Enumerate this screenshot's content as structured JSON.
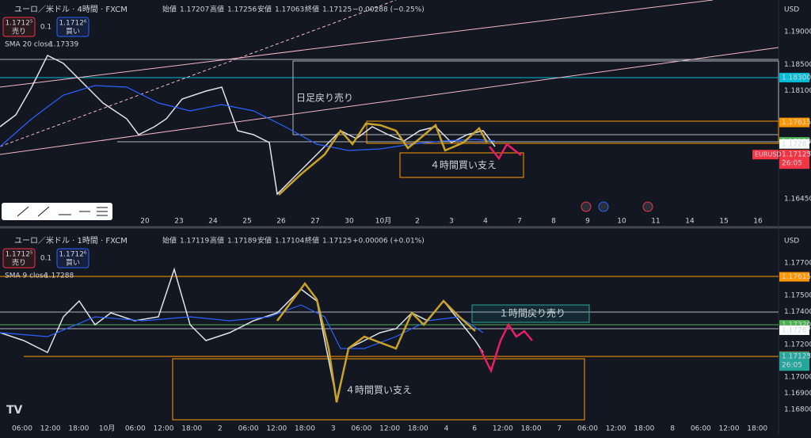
{
  "top_panel": {
    "symbol": "ユーロ／米ドル · 4時間 · FXCM",
    "ohlc": [
      {
        "label": "始値",
        "value": "1.17207"
      },
      {
        "label": "高値",
        "value": "1.17256"
      },
      {
        "label": "安値",
        "value": "1.17063"
      },
      {
        "label": "終値",
        "value": "1.17125"
      }
    ],
    "change": "−0.00288 (−0.25%)",
    "sell": {
      "price": "1.1712⁵",
      "label": "売り"
    },
    "spread": "0.1",
    "buy": {
      "price": "1.1712⁶",
      "label": "買い"
    },
    "indicator": {
      "name": "SMA 20 close",
      "value": "1.17339"
    },
    "currency": "USD",
    "price_ticks": [
      "1.19000",
      "1.18500",
      "1.18100",
      "1.16450"
    ],
    "price_tags": [
      {
        "text": "1.18300",
        "color": "#00bcd4"
      },
      {
        "text": "1.17615",
        "color": "#ff9800"
      },
      {
        "text": "1.17320",
        "color": "#4caf50"
      },
      {
        "text": "1.17287",
        "color": "#ffffff"
      },
      {
        "text": "1.17127",
        "color": "#ff9800"
      }
    ],
    "symbol_tag": "EURUSD",
    "last_price": "1.17125",
    "countdown": "26:05",
    "time_labels": [
      "20",
      "23",
      "24",
      "25",
      "26",
      "27",
      "30",
      "10月",
      "2",
      "3",
      "4",
      "7",
      "8",
      "9",
      "10",
      "11",
      "14",
      "15",
      "16"
    ],
    "annotations": [
      "日足戻り売り",
      "４時間買い支え"
    ]
  },
  "bottom_panel": {
    "symbol": "ユーロ／米ドル · 1時間 · FXCM",
    "ohlc": [
      {
        "label": "始値",
        "value": "1.17119"
      },
      {
        "label": "高値",
        "value": "1.17189"
      },
      {
        "label": "安値",
        "value": "1.17104"
      },
      {
        "label": "終値",
        "value": "1.17125"
      }
    ],
    "change": "+0.00006 (+0.01%)",
    "sell": {
      "price": "1.1712⁵",
      "label": "売り"
    },
    "spread": "0.1",
    "buy": {
      "price": "1.1712⁶",
      "label": "買い"
    },
    "indicator": {
      "name": "SMA 9 close",
      "value": "1.17288"
    },
    "currency": "USD",
    "price_ticks": [
      "1.17700",
      "1.17500",
      "1.17400",
      "1.17200",
      "1.17000",
      "1.16900",
      "1.16800"
    ],
    "price_tags": [
      {
        "text": "1.17615",
        "color": "#ff9800"
      },
      {
        "text": "1.17320",
        "color": "#4caf50"
      },
      {
        "text": "1.17287",
        "color": "#ffffff"
      },
      {
        "text": "1.17127",
        "color": "#ff9800"
      }
    ],
    "last_price": "1.17125",
    "countdown": "26:05",
    "time_labels": [
      "06:00",
      "12:00",
      "18:00",
      "10月",
      "06:00",
      "12:00",
      "18:00",
      "2",
      "06:00",
      "12:00",
      "18:00",
      "3",
      "06:00",
      "12:00",
      "18:00",
      "4",
      "6",
      "12:00",
      "18:00",
      "7",
      "06:00",
      "12:00",
      "18:00",
      "8",
      "06:00",
      "12:00",
      "18:00"
    ],
    "annotations": [
      "１時間戻り売り",
      "４時間買い支え"
    ]
  }
}
